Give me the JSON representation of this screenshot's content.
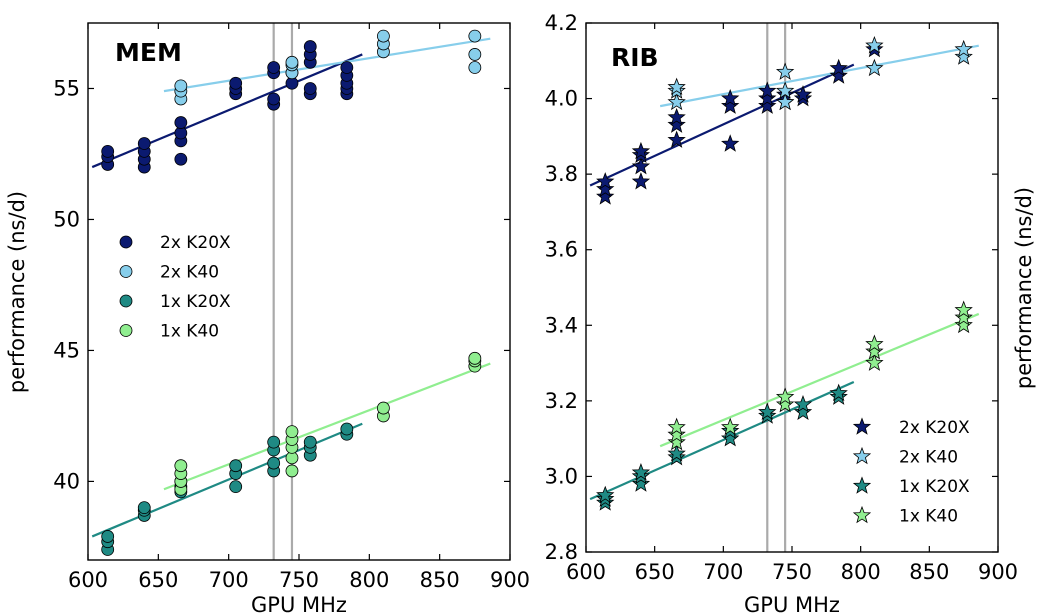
{
  "chart_data": [
    {
      "type": "scatter",
      "title": "MEM",
      "xlabel": "GPU MHz",
      "ylabel": "performance (ns/d)",
      "xlim": [
        600,
        900
      ],
      "ylim": [
        37,
        57.5
      ],
      "xticks": [
        "600",
        "650",
        "700",
        "750",
        "800",
        "850",
        "900"
      ],
      "yticks": [
        "40",
        "45",
        "50",
        "55"
      ],
      "marker": "circle",
      "legend_position": "center-left",
      "vlines": [
        732,
        745
      ],
      "vline_color": "#aaaaaa",
      "series": [
        {
          "name": "2x K20X",
          "color": "#0b1a70",
          "points": [
            [
              614,
              52.1
            ],
            [
              614,
              52.4
            ],
            [
              614,
              52.6
            ],
            [
              640,
              52.0
            ],
            [
              640,
              52.3
            ],
            [
              640,
              52.6
            ],
            [
              640,
              52.9
            ],
            [
              666,
              52.3
            ],
            [
              666,
              53.0
            ],
            [
              666,
              53.3
            ],
            [
              666,
              53.7
            ],
            [
              705,
              54.8
            ],
            [
              705,
              55.0
            ],
            [
              705,
              55.2
            ],
            [
              732,
              54.4
            ],
            [
              732,
              54.6
            ],
            [
              732,
              55.6
            ],
            [
              732,
              55.8
            ],
            [
              745,
              55.2
            ],
            [
              745,
              55.6
            ],
            [
              758,
              54.8
            ],
            [
              758,
              55.0
            ],
            [
              758,
              56.0
            ],
            [
              758,
              56.3
            ],
            [
              758,
              56.6
            ],
            [
              784,
              54.8
            ],
            [
              784,
              55.0
            ],
            [
              784,
              55.2
            ],
            [
              784,
              55.5
            ],
            [
              784,
              55.8
            ]
          ],
          "fit": [
            [
              603,
              52.0
            ],
            [
              795,
              56.3
            ]
          ]
        },
        {
          "name": "2x K40",
          "color": "#87ceeb",
          "points": [
            [
              666,
              54.6
            ],
            [
              666,
              54.9
            ],
            [
              666,
              55.1
            ],
            [
              745,
              55.6
            ],
            [
              745,
              55.9
            ],
            [
              745,
              56.0
            ],
            [
              810,
              56.4
            ],
            [
              810,
              56.7
            ],
            [
              810,
              57.0
            ],
            [
              875,
              55.8
            ],
            [
              875,
              56.3
            ],
            [
              875,
              57.0
            ]
          ],
          "fit": [
            [
              654,
              54.9
            ],
            [
              886,
              56.9
            ]
          ]
        },
        {
          "name": "1x K20X",
          "color": "#1f8a84",
          "points": [
            [
              614,
              37.4
            ],
            [
              614,
              37.7
            ],
            [
              614,
              37.9
            ],
            [
              640,
              38.7
            ],
            [
              640,
              38.9
            ],
            [
              640,
              39.0
            ],
            [
              666,
              39.6
            ],
            [
              666,
              39.8
            ],
            [
              666,
              40.0
            ],
            [
              705,
              39.8
            ],
            [
              705,
              40.3
            ],
            [
              705,
              40.6
            ],
            [
              732,
              40.4
            ],
            [
              732,
              40.7
            ],
            [
              732,
              41.2
            ],
            [
              732,
              41.5
            ],
            [
              758,
              41.0
            ],
            [
              758,
              41.3
            ],
            [
              758,
              41.5
            ],
            [
              784,
              41.8
            ],
            [
              784,
              42.0
            ]
          ],
          "fit": [
            [
              603,
              37.9
            ],
            [
              795,
              42.2
            ]
          ]
        },
        {
          "name": "1x K40",
          "color": "#90ee90",
          "points": [
            [
              666,
              39.7
            ],
            [
              666,
              40.0
            ],
            [
              666,
              40.3
            ],
            [
              666,
              40.6
            ],
            [
              745,
              40.4
            ],
            [
              745,
              40.9
            ],
            [
              745,
              41.3
            ],
            [
              745,
              41.6
            ],
            [
              745,
              41.9
            ],
            [
              810,
              42.5
            ],
            [
              810,
              42.8
            ],
            [
              875,
              44.4
            ],
            [
              875,
              44.6
            ],
            [
              875,
              44.7
            ]
          ],
          "fit": [
            [
              654,
              39.7
            ],
            [
              886,
              44.5
            ]
          ]
        }
      ]
    },
    {
      "type": "scatter",
      "title": "RIB",
      "xlabel": "GPU MHz",
      "ylabel": "performance (ns/d)",
      "xlim": [
        600,
        900
      ],
      "ylim": [
        2.8,
        4.2
      ],
      "xticks": [
        "600",
        "650",
        "700",
        "750",
        "800",
        "850",
        "900"
      ],
      "yticks": [
        "2.8",
        "3.0",
        "3.2",
        "3.4",
        "3.6",
        "3.8",
        "4.0",
        "4.2"
      ],
      "marker": "star",
      "legend_position": "bottom-right",
      "vlines": [
        732,
        745
      ],
      "vline_color": "#aaaaaa",
      "series": [
        {
          "name": "2x K20X",
          "color": "#0b1a70",
          "points": [
            [
              614,
              3.74
            ],
            [
              614,
              3.76
            ],
            [
              614,
              3.78
            ],
            [
              640,
              3.78
            ],
            [
              640,
              3.82
            ],
            [
              640,
              3.85
            ],
            [
              640,
              3.86
            ],
            [
              666,
              3.89
            ],
            [
              666,
              3.93
            ],
            [
              666,
              3.95
            ],
            [
              705,
              3.88
            ],
            [
              705,
              3.98
            ],
            [
              705,
              4.0
            ],
            [
              732,
              3.98
            ],
            [
              732,
              4.0
            ],
            [
              732,
              4.02
            ],
            [
              745,
              3.99
            ],
            [
              745,
              4.01
            ],
            [
              758,
              4.0
            ],
            [
              758,
              4.01
            ],
            [
              784,
              4.06
            ],
            [
              784,
              4.08
            ],
            [
              810,
              4.13
            ]
          ],
          "fit": [
            [
              603,
              3.77
            ],
            [
              795,
              4.09
            ]
          ]
        },
        {
          "name": "2x K40",
          "color": "#87ceeb",
          "points": [
            [
              666,
              3.99
            ],
            [
              666,
              4.02
            ],
            [
              666,
              4.03
            ],
            [
              745,
              3.99
            ],
            [
              745,
              4.02
            ],
            [
              745,
              4.07
            ],
            [
              810,
              4.08
            ],
            [
              810,
              4.14
            ],
            [
              875,
              4.11
            ],
            [
              875,
              4.13
            ]
          ],
          "fit": [
            [
              654,
              3.98
            ],
            [
              886,
              4.14
            ]
          ]
        },
        {
          "name": "1x K20X",
          "color": "#1f8a84",
          "points": [
            [
              614,
              2.93
            ],
            [
              614,
              2.94
            ],
            [
              614,
              2.95
            ],
            [
              640,
              2.98
            ],
            [
              640,
              3.0
            ],
            [
              640,
              3.01
            ],
            [
              666,
              3.05
            ],
            [
              666,
              3.06
            ],
            [
              705,
              3.1
            ],
            [
              705,
              3.12
            ],
            [
              732,
              3.16
            ],
            [
              732,
              3.17
            ],
            [
              758,
              3.17
            ],
            [
              758,
              3.19
            ],
            [
              784,
              3.21
            ],
            [
              784,
              3.22
            ]
          ],
          "fit": [
            [
              603,
              2.94
            ],
            [
              795,
              3.25
            ]
          ]
        },
        {
          "name": "1x K40",
          "color": "#90ee90",
          "points": [
            [
              666,
              3.09
            ],
            [
              666,
              3.11
            ],
            [
              666,
              3.13
            ],
            [
              705,
              3.13
            ],
            [
              745,
              3.19
            ],
            [
              745,
              3.21
            ],
            [
              810,
              3.3
            ],
            [
              810,
              3.33
            ],
            [
              810,
              3.35
            ],
            [
              875,
              3.4
            ],
            [
              875,
              3.42
            ],
            [
              875,
              3.44
            ]
          ],
          "fit": [
            [
              654,
              3.08
            ],
            [
              886,
              3.43
            ]
          ]
        }
      ]
    }
  ]
}
